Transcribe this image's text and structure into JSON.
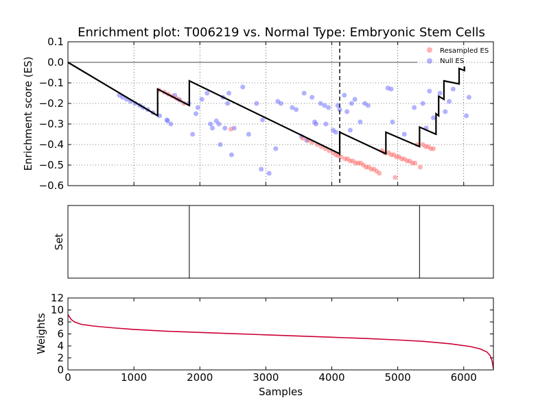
{
  "chart_data": [
    {
      "type": "line",
      "title": "Enrichment plot: T006219 vs. Normal Type: Embryonic Stem Cells",
      "xlabel": "",
      "ylabel": "Enrichment score (ES)",
      "xlim": [
        0,
        6450
      ],
      "ylim": [
        -0.6,
        0.1
      ],
      "yticks": [
        "0.1",
        "0.0",
        "−0.1",
        "−0.2",
        "−0.3",
        "−0.4",
        "−0.5",
        "−0.6"
      ],
      "ytick_values": [
        0.1,
        0.0,
        -0.1,
        -0.2,
        -0.3,
        -0.4,
        -0.5,
        -0.6
      ],
      "xtick_values": [
        1000,
        2000,
        3000,
        4000,
        5000,
        6000
      ],
      "grid": true,
      "legend": {
        "placement": "top-right",
        "entries": [
          "Resampled ES",
          "Null ES"
        ]
      },
      "colors": {
        "running_es": "#000000",
        "resampled": "#ff6666",
        "null": "#6666ff"
      },
      "vline_x": 4120,
      "running_es": {
        "x": [
          0,
          1360,
          1360,
          1840,
          1840,
          4120,
          4120,
          4820,
          4820,
          5330,
          5330,
          5580,
          5580,
          5620,
          5620,
          5700,
          5700,
          5930,
          5930,
          6010,
          6010
        ],
        "y": [
          0.0,
          -0.26,
          -0.13,
          -0.21,
          -0.09,
          -0.445,
          -0.34,
          -0.445,
          -0.34,
          -0.41,
          -0.315,
          -0.35,
          -0.25,
          -0.26,
          -0.165,
          -0.18,
          -0.09,
          -0.105,
          -0.03,
          -0.04,
          -0.02
        ]
      },
      "null_es": {
        "x": [
          780,
          830,
          890,
          950,
          1020,
          1090,
          1140,
          1210,
          1290,
          1390,
          1500,
          1510,
          1560,
          1620,
          1680,
          1830,
          1890,
          1940,
          1970,
          2030,
          2110,
          2160,
          2190,
          2250,
          2290,
          2310,
          2350,
          2380,
          2420,
          2440,
          2480,
          2520,
          2650,
          2740,
          2860,
          2930,
          2950,
          3050,
          3150,
          3180,
          3230,
          3400,
          3460,
          3540,
          3580,
          3620,
          3700,
          3740,
          3760,
          3830,
          3890,
          3910,
          3950,
          4020,
          4060,
          4090,
          4120,
          4190,
          4230,
          4280,
          4300,
          4350,
          4430,
          4500,
          4550,
          4850,
          4900,
          4920,
          5100,
          5250,
          5380,
          5430,
          5480,
          5540,
          5640,
          5720,
          5780,
          5840,
          6040,
          6080
        ],
        "y": [
          -0.16,
          -0.17,
          -0.18,
          -0.19,
          -0.2,
          -0.21,
          -0.22,
          -0.23,
          -0.245,
          -0.26,
          -0.28,
          -0.285,
          -0.3,
          -0.16,
          -0.18,
          -0.2,
          -0.35,
          -0.25,
          -0.22,
          -0.18,
          -0.15,
          -0.3,
          -0.32,
          -0.285,
          -0.3,
          -0.4,
          -0.17,
          -0.32,
          -0.2,
          -0.15,
          -0.45,
          -0.32,
          -0.12,
          -0.35,
          -0.2,
          -0.52,
          -0.28,
          -0.54,
          -0.42,
          -0.19,
          -0.2,
          -0.22,
          -0.23,
          -0.36,
          -0.15,
          -0.38,
          -0.17,
          -0.29,
          -0.3,
          -0.2,
          -0.21,
          -0.3,
          -0.22,
          -0.33,
          -0.34,
          -0.21,
          -0.23,
          -0.16,
          -0.24,
          -0.33,
          -0.2,
          -0.18,
          -0.29,
          -0.2,
          -0.21,
          -0.125,
          -0.13,
          -0.29,
          -0.35,
          -0.22,
          -0.2,
          -0.32,
          -0.14,
          -0.27,
          -0.15,
          -0.24,
          -0.19,
          -0.13,
          -0.26,
          -0.17
        ]
      },
      "resampled_es": {
        "x": [
          1380,
          1460,
          1520,
          1580,
          1640,
          1700,
          1760,
          2470,
          3560,
          3640,
          3700,
          3780,
          3840,
          3900,
          3960,
          4020,
          4060,
          4100,
          4140,
          4200,
          4240,
          4280,
          4320,
          4360,
          4400,
          4440,
          4480,
          4520,
          4560,
          4600,
          4640,
          4680,
          4720,
          4760,
          4800,
          4860,
          4900,
          4940,
          4980,
          5020,
          5060,
          5100,
          5140,
          5180,
          5220,
          5260,
          5290,
          5340,
          5380,
          5420,
          5460,
          5500,
          5540,
          4960
        ],
        "y": [
          -0.135,
          -0.145,
          -0.155,
          -0.165,
          -0.175,
          -0.185,
          -0.2,
          -0.325,
          -0.37,
          -0.38,
          -0.39,
          -0.4,
          -0.41,
          -0.42,
          -0.43,
          -0.44,
          -0.45,
          -0.455,
          -0.46,
          -0.47,
          -0.47,
          -0.48,
          -0.48,
          -0.49,
          -0.49,
          -0.49,
          -0.5,
          -0.51,
          -0.51,
          -0.52,
          -0.52,
          -0.53,
          -0.54,
          -0.43,
          -0.44,
          -0.44,
          -0.45,
          -0.45,
          -0.46,
          -0.46,
          -0.47,
          -0.47,
          -0.48,
          -0.48,
          -0.49,
          -0.49,
          -0.4,
          -0.51,
          -0.4,
          -0.41,
          -0.41,
          -0.42,
          -0.42,
          -0.56
        ]
      }
    },
    {
      "type": "line",
      "title": "",
      "ylabel": "Set",
      "xlim": [
        0,
        6450
      ],
      "set_positions": [
        1840,
        5330
      ]
    },
    {
      "type": "line",
      "title": "",
      "xlabel": "Samples",
      "ylabel": "Weights",
      "xlim": [
        0,
        6450
      ],
      "ylim": [
        0,
        12
      ],
      "yticks": [
        "0",
        "2",
        "4",
        "6",
        "8",
        "10",
        "12"
      ],
      "ytick_values": [
        0,
        2,
        4,
        6,
        8,
        10,
        12
      ],
      "xticks": [
        "0",
        "1000",
        "2000",
        "3000",
        "4000",
        "5000",
        "6000"
      ],
      "xtick_values": [
        0,
        1000,
        2000,
        3000,
        4000,
        5000,
        6000
      ],
      "colors": {
        "weights": "#cc0033"
      },
      "weights": {
        "x": [
          0,
          20,
          50,
          100,
          200,
          400,
          700,
          1000,
          1500,
          2000,
          2500,
          3000,
          3500,
          4000,
          4500,
          5000,
          5400,
          5800,
          6100,
          6250,
          6350,
          6400,
          6430,
          6450
        ],
        "y": [
          9.2,
          8.9,
          8.4,
          8.0,
          7.6,
          7.3,
          7.0,
          6.75,
          6.45,
          6.25,
          6.05,
          5.85,
          5.65,
          5.45,
          5.25,
          5.0,
          4.75,
          4.35,
          3.9,
          3.5,
          3.0,
          2.4,
          1.5,
          0.2
        ]
      }
    }
  ]
}
